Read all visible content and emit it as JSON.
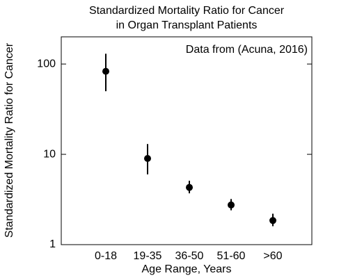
{
  "chart_data": {
    "type": "errorbar",
    "title": [
      "Standardized Mortality Ratio for Cancer",
      "in Organ Transplant Patients"
    ],
    "annotation": "Data from (Acuna, 2016)",
    "xlabel": "Age Range, Years",
    "ylabel": "Standardized Mortality Ratio for Cancer",
    "categories": [
      "0-18",
      "19-35",
      "36-50",
      "51-60",
      ">60"
    ],
    "values": [
      83,
      9,
      4.3,
      2.75,
      1.85
    ],
    "lower": [
      50,
      6,
      3.7,
      2.4,
      1.6
    ],
    "upper": [
      130,
      13,
      5.1,
      3.2,
      2.2
    ],
    "color": "#000000",
    "yscale": "log",
    "ylim": [
      1,
      200
    ],
    "yticks": [
      1,
      10,
      100
    ],
    "grid": false
  }
}
